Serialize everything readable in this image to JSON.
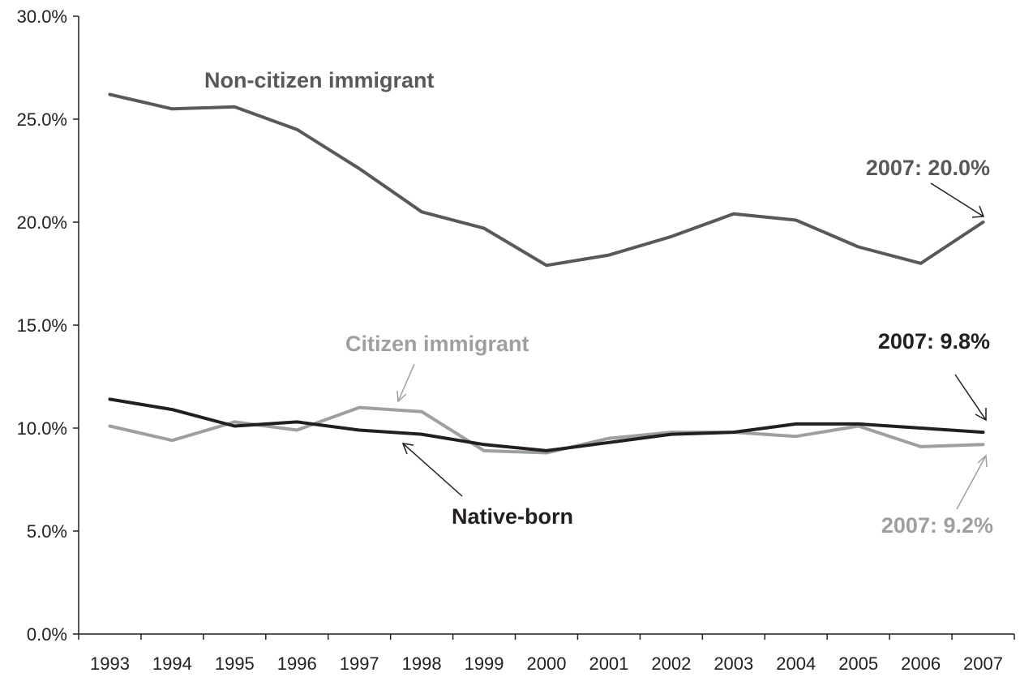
{
  "chart_data": {
    "type": "line",
    "title": "",
    "xlabel": "",
    "ylabel": "",
    "categories": [
      "1993",
      "1994",
      "1995",
      "1996",
      "1997",
      "1998",
      "1999",
      "2000",
      "2001",
      "2002",
      "2003",
      "2004",
      "2005",
      "2006",
      "2007"
    ],
    "ylim": [
      0,
      30
    ],
    "yticks": [
      "0.0%",
      "5.0%",
      "10.0%",
      "15.0%",
      "20.0%",
      "25.0%",
      "30.0%"
    ],
    "grid": false,
    "legend": "none",
    "series": [
      {
        "name": "Non-citizen immigrant",
        "color": "#58595b",
        "values": [
          26.2,
          25.5,
          25.6,
          24.5,
          22.6,
          20.5,
          19.7,
          17.9,
          18.4,
          19.3,
          20.4,
          20.1,
          18.8,
          18.0,
          20.0
        ],
        "end_label": "2007: 20.0%"
      },
      {
        "name": "Citizen immigrant",
        "color": "#9d9fa2",
        "values": [
          10.1,
          9.4,
          10.3,
          9.9,
          11.0,
          10.8,
          8.9,
          8.8,
          9.5,
          9.8,
          9.8,
          9.6,
          10.1,
          9.1,
          9.2
        ],
        "end_label": "2007: 9.2%"
      },
      {
        "name": "Native-born",
        "color": "#231f20",
        "values": [
          11.4,
          10.9,
          10.1,
          10.3,
          9.9,
          9.7,
          9.2,
          8.9,
          9.3,
          9.7,
          9.8,
          10.2,
          10.2,
          10.0,
          9.8
        ],
        "end_label": "2007: 9.8%"
      }
    ]
  }
}
